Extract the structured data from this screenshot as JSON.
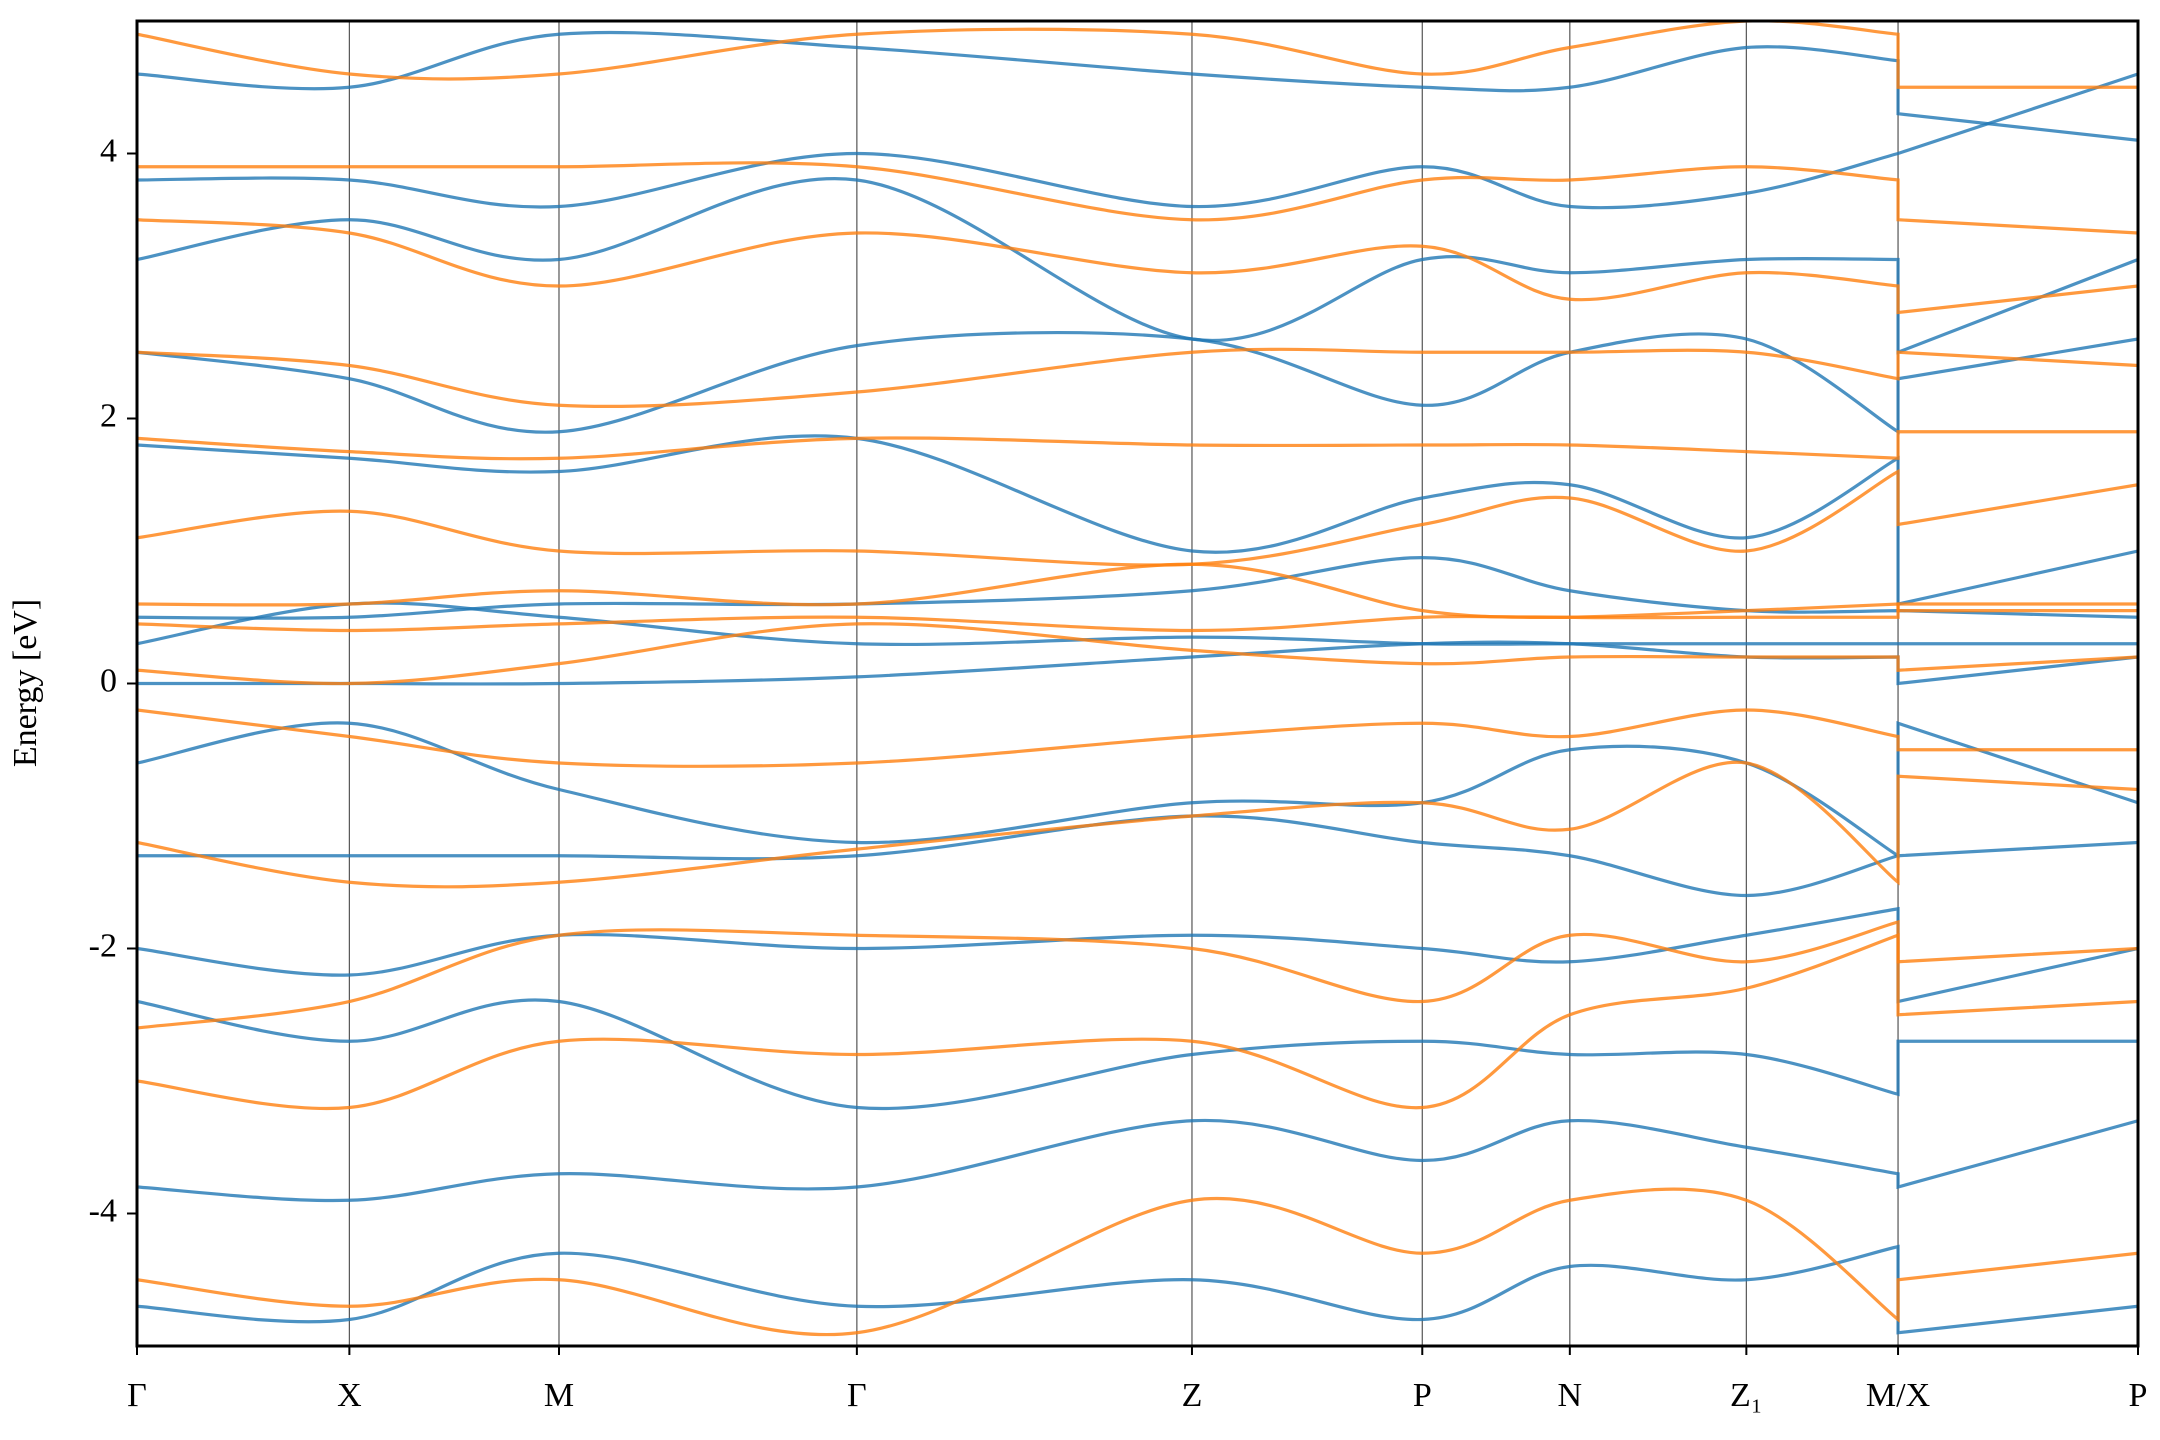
{
  "chart_data": {
    "type": "line",
    "y_label": "Energy [eV]",
    "x": [
      0,
      1.54,
      3.06,
      5.22,
      7.65,
      9.32,
      10.39,
      11.67,
      12.77,
      12.77,
      14.51
    ],
    "xlim": [
      0,
      14.51
    ],
    "xticks": [
      {
        "value": 0,
        "label": "Γ"
      },
      {
        "value": 1.54,
        "label": "X"
      },
      {
        "value": 3.06,
        "label": "M"
      },
      {
        "value": 5.22,
        "label": "Γ"
      },
      {
        "value": 7.65,
        "label": "Z"
      },
      {
        "value": 9.32,
        "label": "P"
      },
      {
        "value": 10.39,
        "label": "N"
      },
      {
        "value": 11.67,
        "label": "Z₁"
      },
      {
        "value": 12.77,
        "label": "M/X"
      },
      {
        "value": 14.51,
        "label": "P"
      }
    ],
    "ylim": [
      -5,
      5
    ],
    "yticks": [
      -4,
      -2,
      0,
      2,
      4
    ],
    "series": [
      {
        "color": "#1f77b4",
        "values": [
          -4.7,
          -4.8,
          -4.3,
          -4.7,
          -4.5,
          -4.8,
          -4.4,
          -4.5,
          -4.25,
          -4.9,
          -4.7
        ]
      },
      {
        "color": "#1f77b4",
        "values": [
          -3.8,
          -3.9,
          -3.7,
          -3.8,
          -3.3,
          -3.6,
          -3.3,
          -3.5,
          -3.7,
          -3.8,
          -3.3
        ]
      },
      {
        "color": "#1f77b4",
        "values": [
          -2.4,
          -2.7,
          -2.4,
          -3.2,
          -2.8,
          -2.7,
          -2.8,
          -2.8,
          -3.1,
          -2.7,
          -2.7
        ]
      },
      {
        "color": "#1f77b4",
        "values": [
          -2.0,
          -2.2,
          -1.9,
          -2.0,
          -1.9,
          -2.0,
          -2.1,
          -1.9,
          -1.7,
          -2.4,
          -2.0
        ]
      },
      {
        "color": "#1f77b4",
        "values": [
          -1.3,
          -1.3,
          -1.3,
          -1.3,
          -1.0,
          -1.2,
          -1.3,
          -1.6,
          -1.3,
          -1.3,
          -1.2
        ]
      },
      {
        "color": "#1f77b4",
        "values": [
          -0.6,
          -0.3,
          -0.8,
          -1.2,
          -0.9,
          -0.9,
          -0.5,
          -0.6,
          -1.3,
          -0.3,
          -0.9
        ]
      },
      {
        "color": "#1f77b4",
        "values": [
          0.0,
          0.0,
          0.0,
          0.05,
          0.2,
          0.3,
          0.3,
          0.2,
          0.2,
          0.0,
          0.2
        ]
      },
      {
        "color": "#1f77b4",
        "values": [
          0.3,
          0.6,
          0.5,
          0.3,
          0.35,
          0.3,
          0.3,
          0.3,
          0.3,
          0.3,
          0.3
        ]
      },
      {
        "color": "#1f77b4",
        "values": [
          0.5,
          0.5,
          0.6,
          0.6,
          0.7,
          0.95,
          0.7,
          0.55,
          0.55,
          0.55,
          0.5
        ]
      },
      {
        "color": "#1f77b4",
        "values": [
          1.8,
          1.7,
          1.6,
          1.85,
          1.0,
          1.4,
          1.5,
          1.1,
          1.7,
          0.6,
          1.0
        ]
      },
      {
        "color": "#1f77b4",
        "values": [
          2.5,
          2.3,
          1.9,
          2.55,
          2.6,
          2.1,
          2.5,
          2.6,
          1.9,
          2.3,
          2.6
        ]
      },
      {
        "color": "#1f77b4",
        "values": [
          3.2,
          3.5,
          3.2,
          3.8,
          2.6,
          3.2,
          3.1,
          3.2,
          3.2,
          2.5,
          3.2
        ]
      },
      {
        "color": "#1f77b4",
        "values": [
          3.8,
          3.8,
          3.6,
          4.0,
          3.6,
          3.9,
          3.6,
          3.7,
          4.0,
          4.0,
          4.6
        ]
      },
      {
        "color": "#1f77b4",
        "values": [
          4.6,
          4.5,
          4.9,
          4.8,
          4.6,
          4.5,
          4.5,
          4.8,
          4.7,
          4.3,
          4.1
        ]
      },
      {
        "color": "#ff7f0e",
        "values": [
          -4.5,
          -4.7,
          -4.5,
          -4.9,
          -3.9,
          -4.3,
          -3.9,
          -3.9,
          -4.8,
          -4.5,
          -4.3
        ]
      },
      {
        "color": "#ff7f0e",
        "values": [
          -3.0,
          -3.2,
          -2.7,
          -2.8,
          -2.7,
          -3.2,
          -2.5,
          -2.3,
          -1.9,
          -2.5,
          -2.4
        ]
      },
      {
        "color": "#ff7f0e",
        "values": [
          -2.6,
          -2.4,
          -1.9,
          -1.9,
          -2.0,
          -2.4,
          -1.9,
          -2.1,
          -1.8,
          -2.1,
          -2.0
        ]
      },
      {
        "color": "#ff7f0e",
        "values": [
          -1.2,
          -1.5,
          -1.5,
          -1.25,
          -1.0,
          -0.9,
          -1.1,
          -0.6,
          -1.5,
          -0.7,
          -0.8
        ]
      },
      {
        "color": "#ff7f0e",
        "values": [
          -0.2,
          -0.4,
          -0.6,
          -0.6,
          -0.4,
          -0.3,
          -0.4,
          -0.2,
          -0.4,
          -0.5,
          -0.5
        ]
      },
      {
        "color": "#ff7f0e",
        "values": [
          0.1,
          0.0,
          0.15,
          0.45,
          0.25,
          0.15,
          0.2,
          0.2,
          0.2,
          0.1,
          0.2
        ]
      },
      {
        "color": "#ff7f0e",
        "values": [
          0.45,
          0.4,
          0.45,
          0.5,
          0.4,
          0.5,
          0.5,
          0.55,
          0.6,
          0.55,
          0.55
        ]
      },
      {
        "color": "#ff7f0e",
        "values": [
          0.6,
          0.6,
          0.7,
          0.6,
          0.9,
          0.55,
          0.5,
          0.5,
          0.5,
          0.6,
          0.6
        ]
      },
      {
        "color": "#ff7f0e",
        "values": [
          1.1,
          1.3,
          1.0,
          1.0,
          0.9,
          1.2,
          1.4,
          1.0,
          1.6,
          1.2,
          1.5
        ]
      },
      {
        "color": "#ff7f0e",
        "values": [
          1.85,
          1.75,
          1.7,
          1.85,
          1.8,
          1.8,
          1.8,
          1.75,
          1.7,
          1.9,
          1.9
        ]
      },
      {
        "color": "#ff7f0e",
        "values": [
          2.5,
          2.4,
          2.1,
          2.2,
          2.5,
          2.5,
          2.5,
          2.5,
          2.3,
          2.5,
          2.4
        ]
      },
      {
        "color": "#ff7f0e",
        "values": [
          3.5,
          3.4,
          3.0,
          3.4,
          3.1,
          3.3,
          2.9,
          3.1,
          3.0,
          2.8,
          3.0
        ]
      },
      {
        "color": "#ff7f0e",
        "values": [
          3.9,
          3.9,
          3.9,
          3.9,
          3.5,
          3.8,
          3.8,
          3.9,
          3.8,
          3.5,
          3.4
        ]
      },
      {
        "color": "#ff7f0e",
        "values": [
          4.9,
          4.6,
          4.6,
          4.9,
          4.9,
          4.6,
          4.8,
          5.0,
          4.9,
          4.5,
          4.5
        ]
      }
    ]
  }
}
